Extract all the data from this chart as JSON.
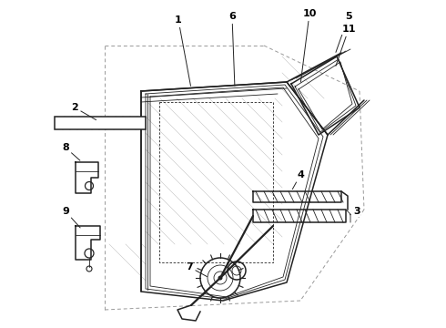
{
  "bg_color": "#ffffff",
  "line_color": "#222222",
  "dash_color": "#999999",
  "lw_main": 1.1,
  "lw_thin": 0.6,
  "lw_thick": 1.6,
  "figsize": [
    4.9,
    3.6
  ],
  "dpi": 100
}
